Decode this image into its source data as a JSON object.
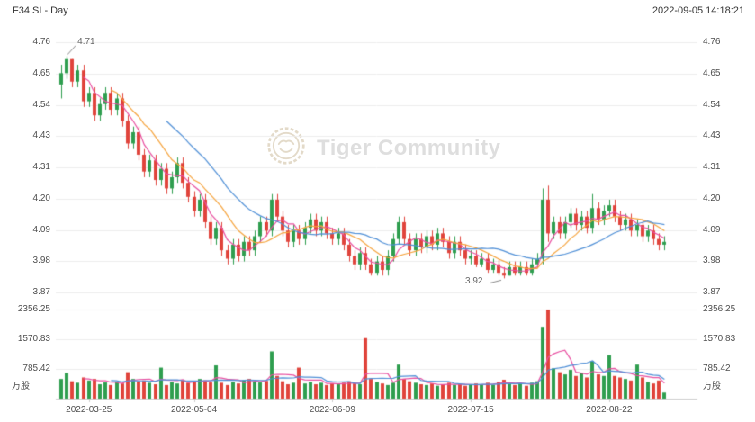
{
  "header": {
    "title": "F34.SI - Day",
    "timestamp": "2022-09-05 14:18:21"
  },
  "watermark": {
    "text": "Tiger Community"
  },
  "colors": {
    "up": "#2f9e4f",
    "down": "#e0443c",
    "ma5": "#e84fa0",
    "ma10": "#f5a33c",
    "ma20": "#4f8fd6",
    "grid": "#ededed",
    "axis_line": "#cccccc",
    "text": "#4d4d4d",
    "annotation_line": "#888888"
  },
  "chart_data": {
    "type": "candlestick",
    "title": "F34.SI - Day",
    "symbol": "F34.SI",
    "interval": "Day",
    "price_axis": {
      "min": 3.87,
      "max": 4.76,
      "tick_labels": [
        "4.76",
        "4.65",
        "4.54",
        "4.43",
        "4.31",
        "4.20",
        "4.09",
        "3.98",
        "3.87"
      ]
    },
    "volume_axis": {
      "max": 2356.25,
      "tick_values": [
        2356.25,
        1570.83,
        785.42
      ],
      "tick_labels": [
        "2356.25",
        "1570.83",
        "785.42"
      ],
      "unit": "万股"
    },
    "x_ticks": [
      {
        "index": 5,
        "label": "2022-03-25"
      },
      {
        "index": 24,
        "label": "2022-05-04"
      },
      {
        "index": 49,
        "label": "2022-06-09"
      },
      {
        "index": 74,
        "label": "2022-07-15"
      },
      {
        "index": 99,
        "label": "2022-08-22"
      }
    ],
    "series": {
      "open": [
        4.61,
        4.65,
        4.7,
        4.62,
        4.66,
        4.55,
        4.58,
        4.5,
        4.54,
        4.58,
        4.52,
        4.56,
        4.48,
        4.4,
        4.44,
        4.36,
        4.3,
        4.34,
        4.27,
        4.31,
        4.24,
        4.28,
        4.33,
        4.26,
        4.21,
        4.16,
        4.2,
        4.12,
        4.06,
        4.1,
        4.02,
        3.99,
        4.04,
        4.0,
        4.05,
        4.02,
        4.07,
        4.12,
        4.09,
        4.2,
        4.14,
        4.09,
        4.05,
        4.09,
        4.06,
        4.1,
        4.13,
        4.09,
        4.12,
        4.08,
        4.06,
        4.08,
        4.04,
        4.0,
        3.97,
        4.01,
        3.97,
        3.94,
        3.98,
        3.95,
        4.0,
        4.06,
        4.12,
        4.06,
        4.02,
        4.06,
        4.03,
        4.07,
        4.04,
        4.08,
        4.05,
        4.01,
        4.05,
        4.02,
        3.99,
        4.0,
        3.97,
        3.99,
        3.95,
        3.97,
        3.94,
        3.93,
        3.96,
        3.94,
        3.96,
        3.94,
        3.97,
        3.99,
        4.2,
        4.08,
        4.12,
        4.08,
        4.12,
        4.15,
        4.11,
        4.14,
        4.1,
        4.17,
        4.13,
        4.16,
        4.18,
        4.14,
        4.11,
        4.13,
        4.09,
        4.11,
        4.07,
        4.09,
        4.06,
        4.04
      ],
      "high": [
        4.68,
        4.71,
        4.7,
        4.68,
        4.68,
        4.6,
        4.6,
        4.56,
        4.6,
        4.6,
        4.58,
        4.58,
        4.5,
        4.46,
        4.46,
        4.38,
        4.36,
        4.36,
        4.33,
        4.33,
        4.3,
        4.35,
        4.35,
        4.28,
        4.23,
        4.22,
        4.22,
        4.14,
        4.12,
        4.12,
        4.04,
        4.06,
        4.06,
        4.07,
        4.07,
        4.09,
        4.14,
        4.14,
        4.22,
        4.22,
        4.16,
        4.11,
        4.11,
        4.11,
        4.12,
        4.15,
        4.15,
        4.14,
        4.14,
        4.1,
        4.1,
        4.1,
        4.06,
        4.02,
        4.03,
        4.03,
        3.99,
        4.0,
        4.0,
        4.02,
        4.08,
        4.14,
        4.14,
        4.08,
        4.08,
        4.08,
        4.09,
        4.09,
        4.1,
        4.1,
        4.07,
        4.07,
        4.07,
        4.04,
        4.02,
        4.02,
        4.01,
        4.01,
        3.99,
        3.99,
        3.96,
        3.98,
        3.98,
        3.98,
        3.98,
        3.99,
        4.01,
        4.24,
        4.25,
        4.14,
        4.14,
        4.14,
        4.17,
        4.17,
        4.16,
        4.16,
        4.22,
        4.19,
        4.18,
        4.2,
        4.2,
        4.16,
        4.15,
        4.15,
        4.13,
        4.13,
        4.11,
        4.11,
        4.08,
        4.07
      ],
      "low": [
        4.56,
        4.63,
        4.6,
        4.6,
        4.53,
        4.53,
        4.48,
        4.48,
        4.52,
        4.5,
        4.5,
        4.46,
        4.38,
        4.38,
        4.34,
        4.28,
        4.28,
        4.25,
        4.25,
        4.22,
        4.22,
        4.26,
        4.24,
        4.19,
        4.14,
        4.14,
        4.1,
        4.04,
        4.04,
        4.0,
        3.97,
        3.97,
        3.98,
        3.98,
        4.0,
        4.0,
        4.05,
        4.07,
        4.07,
        4.12,
        4.07,
        4.03,
        4.03,
        4.04,
        4.04,
        4.08,
        4.07,
        4.07,
        4.06,
        4.04,
        4.04,
        4.02,
        3.98,
        3.95,
        3.95,
        3.95,
        3.93,
        3.93,
        3.93,
        3.93,
        3.98,
        4.04,
        4.04,
        4.0,
        4.0,
        4.01,
        4.01,
        4.02,
        4.02,
        4.03,
        3.99,
        3.99,
        4.0,
        3.97,
        3.97,
        3.96,
        3.96,
        3.94,
        3.94,
        3.93,
        3.92,
        3.93,
        3.93,
        3.93,
        3.93,
        3.93,
        3.96,
        3.97,
        4.05,
        4.06,
        4.06,
        4.06,
        4.1,
        4.09,
        4.09,
        4.08,
        4.08,
        4.11,
        4.11,
        4.14,
        4.12,
        4.09,
        4.09,
        4.07,
        4.07,
        4.05,
        4.05,
        4.04,
        4.02,
        4.02
      ],
      "close": [
        4.65,
        4.7,
        4.62,
        4.66,
        4.55,
        4.58,
        4.5,
        4.54,
        4.58,
        4.52,
        4.56,
        4.48,
        4.4,
        4.44,
        4.36,
        4.3,
        4.34,
        4.27,
        4.31,
        4.24,
        4.28,
        4.33,
        4.26,
        4.21,
        4.16,
        4.2,
        4.12,
        4.06,
        4.1,
        4.02,
        3.99,
        4.04,
        4.0,
        4.05,
        4.02,
        4.07,
        4.12,
        4.09,
        4.2,
        4.14,
        4.09,
        4.05,
        4.09,
        4.06,
        4.1,
        4.13,
        4.09,
        4.12,
        4.08,
        4.06,
        4.08,
        4.04,
        4.0,
        3.97,
        4.01,
        3.97,
        3.94,
        3.98,
        3.95,
        4.0,
        4.06,
        4.12,
        4.06,
        4.02,
        4.06,
        4.03,
        4.07,
        4.04,
        4.08,
        4.05,
        4.01,
        4.05,
        4.02,
        3.99,
        4.0,
        3.97,
        3.99,
        3.95,
        3.97,
        3.94,
        3.93,
        3.96,
        3.94,
        3.96,
        3.94,
        3.97,
        3.99,
        4.2,
        4.08,
        4.12,
        4.08,
        4.12,
        4.15,
        4.11,
        4.14,
        4.1,
        4.17,
        4.13,
        4.16,
        4.18,
        4.14,
        4.11,
        4.13,
        4.09,
        4.11,
        4.07,
        4.09,
        4.06,
        4.04,
        4.05
      ],
      "volume": [
        520,
        680,
        460,
        420,
        560,
        480,
        520,
        380,
        430,
        360,
        450,
        400,
        700,
        520,
        460,
        480,
        420,
        380,
        820,
        360,
        440,
        400,
        480,
        420,
        460,
        520,
        480,
        430,
        880,
        420,
        360,
        440,
        400,
        480,
        520,
        460,
        430,
        470,
        1250,
        600,
        460,
        380,
        420,
        820,
        400,
        440,
        380,
        420,
        360,
        400,
        380,
        420,
        460,
        400,
        380,
        1600,
        520,
        440,
        400,
        360,
        420,
        900,
        520,
        460,
        420,
        380,
        360,
        400,
        340,
        380,
        420,
        360,
        380,
        340,
        360,
        400,
        380,
        420,
        360,
        440,
        500,
        380,
        360,
        400,
        340,
        420,
        460,
        1900,
        2356,
        800,
        700,
        640,
        760,
        600,
        680,
        560,
        1000,
        640,
        600,
        1150,
        600,
        560,
        520,
        480,
        900,
        560,
        440,
        400,
        480,
        160
      ]
    },
    "price_overlays": [
      {
        "name": "MA5",
        "window": 5,
        "color": "#e84fa0"
      },
      {
        "name": "MA10",
        "window": 10,
        "color": "#f5a33c"
      },
      {
        "name": "MA20",
        "window": 20,
        "color": "#4f8fd6"
      }
    ],
    "volume_overlays": [
      {
        "name": "VMA5",
        "window": 5,
        "color": "#e84fa0"
      },
      {
        "name": "VMA10",
        "window": 10,
        "color": "#4f8fd6"
      }
    ],
    "annotations": [
      {
        "type": "max-high",
        "label": "4.71",
        "value": 4.71,
        "index": 1
      },
      {
        "type": "min-low",
        "label": "3.92",
        "value": 3.92,
        "index": 80
      }
    ]
  }
}
